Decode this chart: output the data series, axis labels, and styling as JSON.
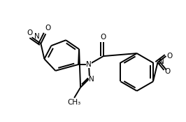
{
  "bg_color": "#ffffff",
  "line_color": "#000000",
  "line_width": 1.4,
  "font_size": 7.5,
  "xlim": [
    0.0,
    1.0
  ],
  "ylim": [
    0.0,
    1.0
  ]
}
